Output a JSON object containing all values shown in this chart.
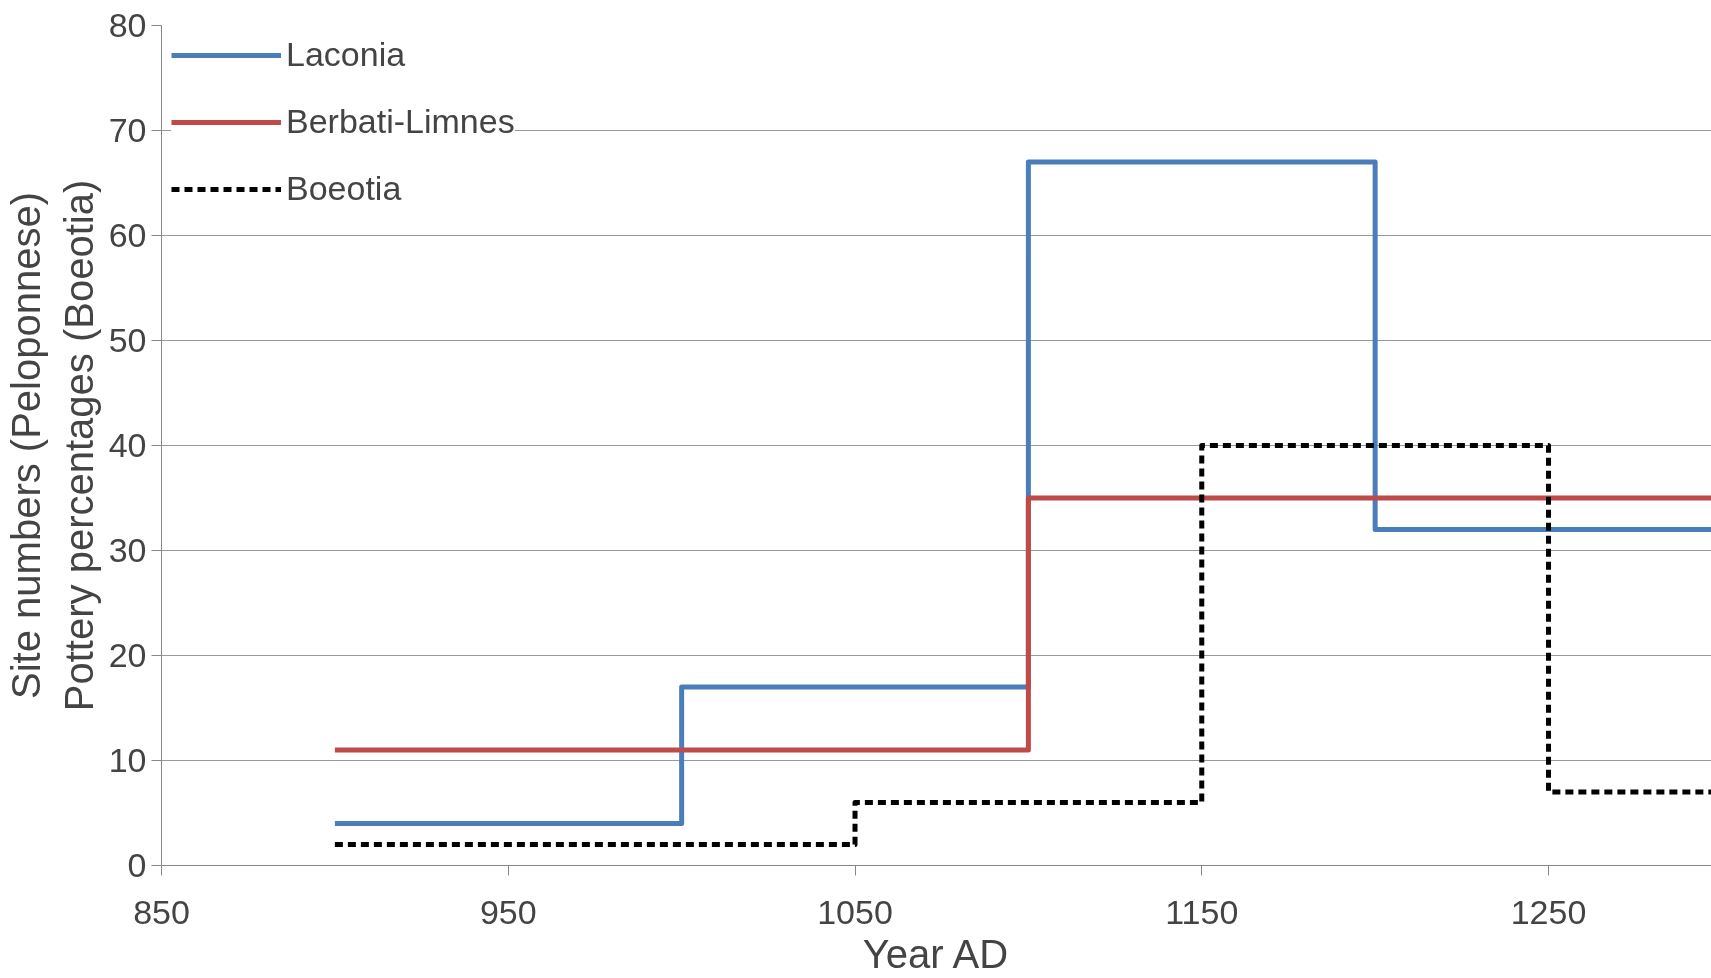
{
  "chart_data": {
    "type": "step",
    "xlabel": "Year AD",
    "ylabel": "Site numbers (Peloponnese)\nPottery percentages (Boeotia)",
    "xlim": [
      850,
      1297
    ],
    "xticks": [
      850,
      950,
      1050,
      1150,
      1250
    ],
    "ylim": [
      0,
      80
    ],
    "yticks": [
      0,
      10,
      20,
      30,
      40,
      50,
      60,
      70,
      80
    ],
    "grid": "y",
    "legend": "top left",
    "marker": "none",
    "series": [
      {
        "name": "Laconia",
        "color": "#4a7ebb",
        "line_style": "solid",
        "x": [
          900,
          1000,
          1100,
          1200,
          1297
        ],
        "values": [
          4,
          17,
          67,
          32,
          32
        ]
      },
      {
        "name": "Berbati-Limnes",
        "color": "#be4b48",
        "line_style": "solid",
        "x": [
          900,
          1100,
          1297
        ],
        "values": [
          11,
          35,
          35
        ]
      },
      {
        "name": "Boeotia",
        "color": "#000000",
        "line_style": "dashed",
        "x": [
          900,
          1050,
          1150,
          1250,
          1297
        ],
        "values": [
          2,
          6,
          40,
          7,
          7
        ]
      }
    ]
  }
}
